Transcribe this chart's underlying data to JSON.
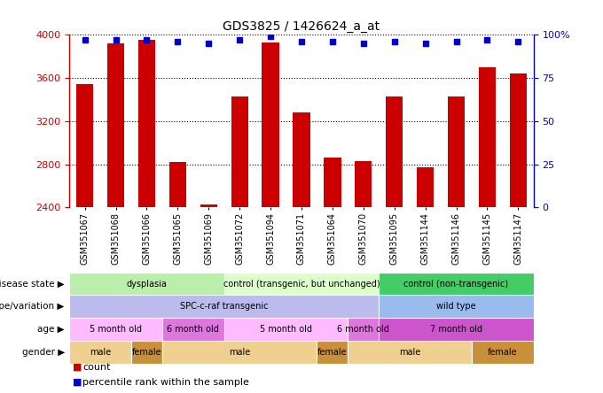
{
  "title": "GDS3825 / 1426624_a_at",
  "samples": [
    "GSM351067",
    "GSM351068",
    "GSM351066",
    "GSM351065",
    "GSM351069",
    "GSM351072",
    "GSM351094",
    "GSM351071",
    "GSM351064",
    "GSM351070",
    "GSM351095",
    "GSM351144",
    "GSM351146",
    "GSM351145",
    "GSM351147"
  ],
  "counts": [
    3540,
    3920,
    3950,
    2820,
    2430,
    3430,
    3930,
    3280,
    2860,
    2830,
    3430,
    2770,
    3430,
    3700,
    3640
  ],
  "percentiles": [
    97,
    97,
    97,
    96,
    95,
    97,
    99,
    96,
    96,
    95,
    96,
    95,
    96,
    97,
    96
  ],
  "ylim_left": [
    2400,
    4000
  ],
  "ylim_right": [
    0,
    100
  ],
  "yticks_left": [
    2400,
    2800,
    3200,
    3600,
    4000
  ],
  "yticks_right": [
    0,
    25,
    50,
    75,
    100
  ],
  "bar_color": "#cc0000",
  "dot_color": "#0000cc",
  "background_color": "#ffffff",
  "annotation_rows": [
    {
      "label": "disease state",
      "segments": [
        {
          "text": "dysplasia",
          "start": 0,
          "end": 5,
          "color": "#bbeeaa"
        },
        {
          "text": "control (transgenic, but unchanged)",
          "start": 5,
          "end": 10,
          "color": "#ddffcc"
        },
        {
          "text": "control (non-transgenic)",
          "start": 10,
          "end": 15,
          "color": "#44cc66"
        }
      ]
    },
    {
      "label": "genotype/variation",
      "segments": [
        {
          "text": "SPC-c-raf transgenic",
          "start": 0,
          "end": 10,
          "color": "#bbbbee"
        },
        {
          "text": "wild type",
          "start": 10,
          "end": 15,
          "color": "#99bbee"
        }
      ]
    },
    {
      "label": "age",
      "segments": [
        {
          "text": "5 month old",
          "start": 0,
          "end": 3,
          "color": "#ffbbff"
        },
        {
          "text": "6 month old",
          "start": 3,
          "end": 5,
          "color": "#dd77dd"
        },
        {
          "text": "5 month old",
          "start": 5,
          "end": 9,
          "color": "#ffbbff"
        },
        {
          "text": "6 month old",
          "start": 9,
          "end": 10,
          "color": "#dd77dd"
        },
        {
          "text": "7 month old",
          "start": 10,
          "end": 15,
          "color": "#cc55cc"
        }
      ]
    },
    {
      "label": "gender",
      "segments": [
        {
          "text": "male",
          "start": 0,
          "end": 2,
          "color": "#f0d090"
        },
        {
          "text": "female",
          "start": 2,
          "end": 3,
          "color": "#c8903a"
        },
        {
          "text": "male",
          "start": 3,
          "end": 8,
          "color": "#f0d090"
        },
        {
          "text": "female",
          "start": 8,
          "end": 9,
          "color": "#c8903a"
        },
        {
          "text": "male",
          "start": 9,
          "end": 13,
          "color": "#f0d090"
        },
        {
          "text": "female",
          "start": 13,
          "end": 15,
          "color": "#c8903a"
        }
      ]
    }
  ],
  "legend_items": [
    {
      "color": "#cc0000",
      "label": "count"
    },
    {
      "color": "#0000cc",
      "label": "percentile rank within the sample"
    }
  ]
}
